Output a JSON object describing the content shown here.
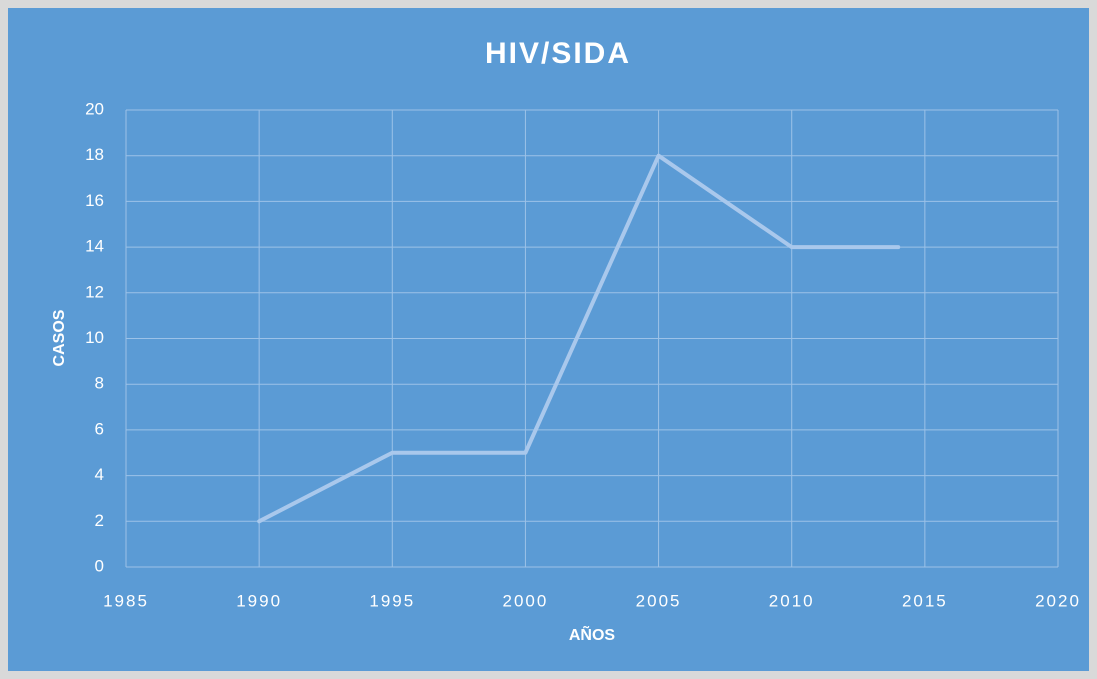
{
  "chart_data": {
    "type": "line",
    "title": "HIV/SIDA",
    "x_label": "AÑOS",
    "y_label": "CASOS",
    "x": [
      1990,
      1995,
      2000,
      2005,
      2010,
      2014
    ],
    "series": [
      {
        "name": "HIV/SIDA",
        "color": "#a9c8ec",
        "values": [
          2,
          5,
          5,
          18,
          14,
          14
        ]
      }
    ],
    "xlim": [
      1985,
      2020
    ],
    "xticks": [
      1985,
      1990,
      1995,
      2000,
      2005,
      2010,
      2015,
      2020
    ],
    "ylim": [
      0,
      20
    ],
    "yticks": [
      0,
      2,
      4,
      6,
      8,
      10,
      12,
      14,
      16,
      18,
      20
    ],
    "grid": true
  }
}
